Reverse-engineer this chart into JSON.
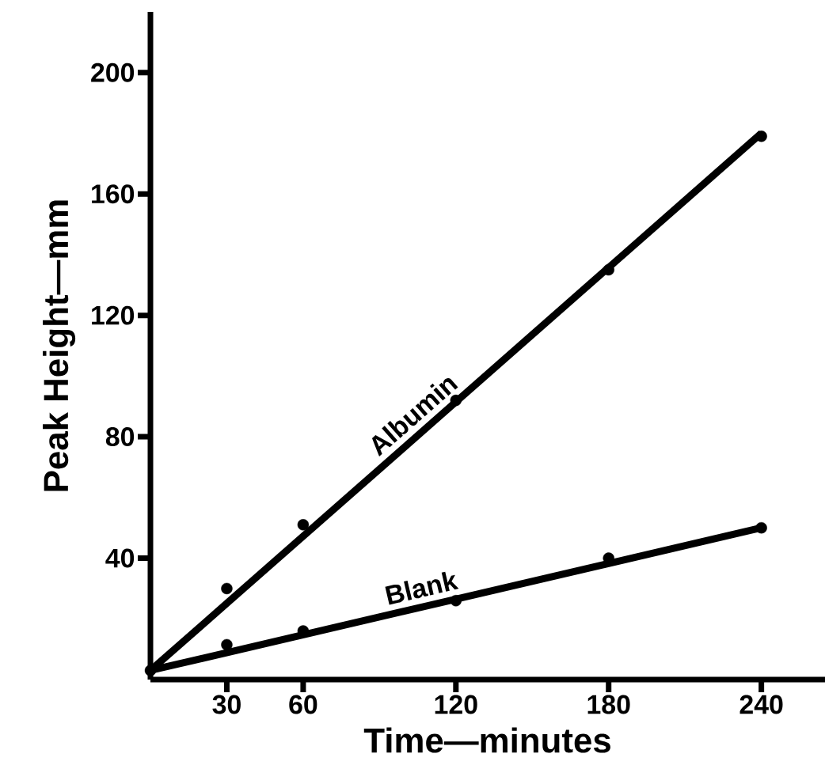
{
  "chart_data": {
    "type": "line",
    "xlabel": "Time—minutes",
    "ylabel": "Peak Height—mm",
    "xlim": [
      0,
      265
    ],
    "ylim": [
      0,
      220
    ],
    "xticks": [
      30,
      60,
      120,
      180,
      240
    ],
    "yticks": [
      40,
      80,
      120,
      160,
      200
    ],
    "series": [
      {
        "name": "Albumin",
        "color": "#000000",
        "marker": "none",
        "line_style": "solid",
        "x": [
          0,
          240
        ],
        "values": [
          3,
          180
        ]
      },
      {
        "name": "Blank",
        "color": "#000000",
        "marker": "none",
        "line_style": "solid",
        "x": [
          0,
          240
        ],
        "values": [
          3,
          50
        ]
      },
      {
        "type": "scatter",
        "color": "#000000",
        "marker": "circle",
        "x": [
          0,
          30,
          60,
          120,
          180,
          240
        ],
        "values": [
          3,
          30,
          51,
          92,
          135,
          179
        ]
      },
      {
        "type": "scatter",
        "color": "#000000",
        "marker": "circle",
        "x": [
          30,
          60,
          120,
          180,
          240
        ],
        "values": [
          11.5,
          16,
          26,
          40,
          50
        ]
      }
    ]
  }
}
